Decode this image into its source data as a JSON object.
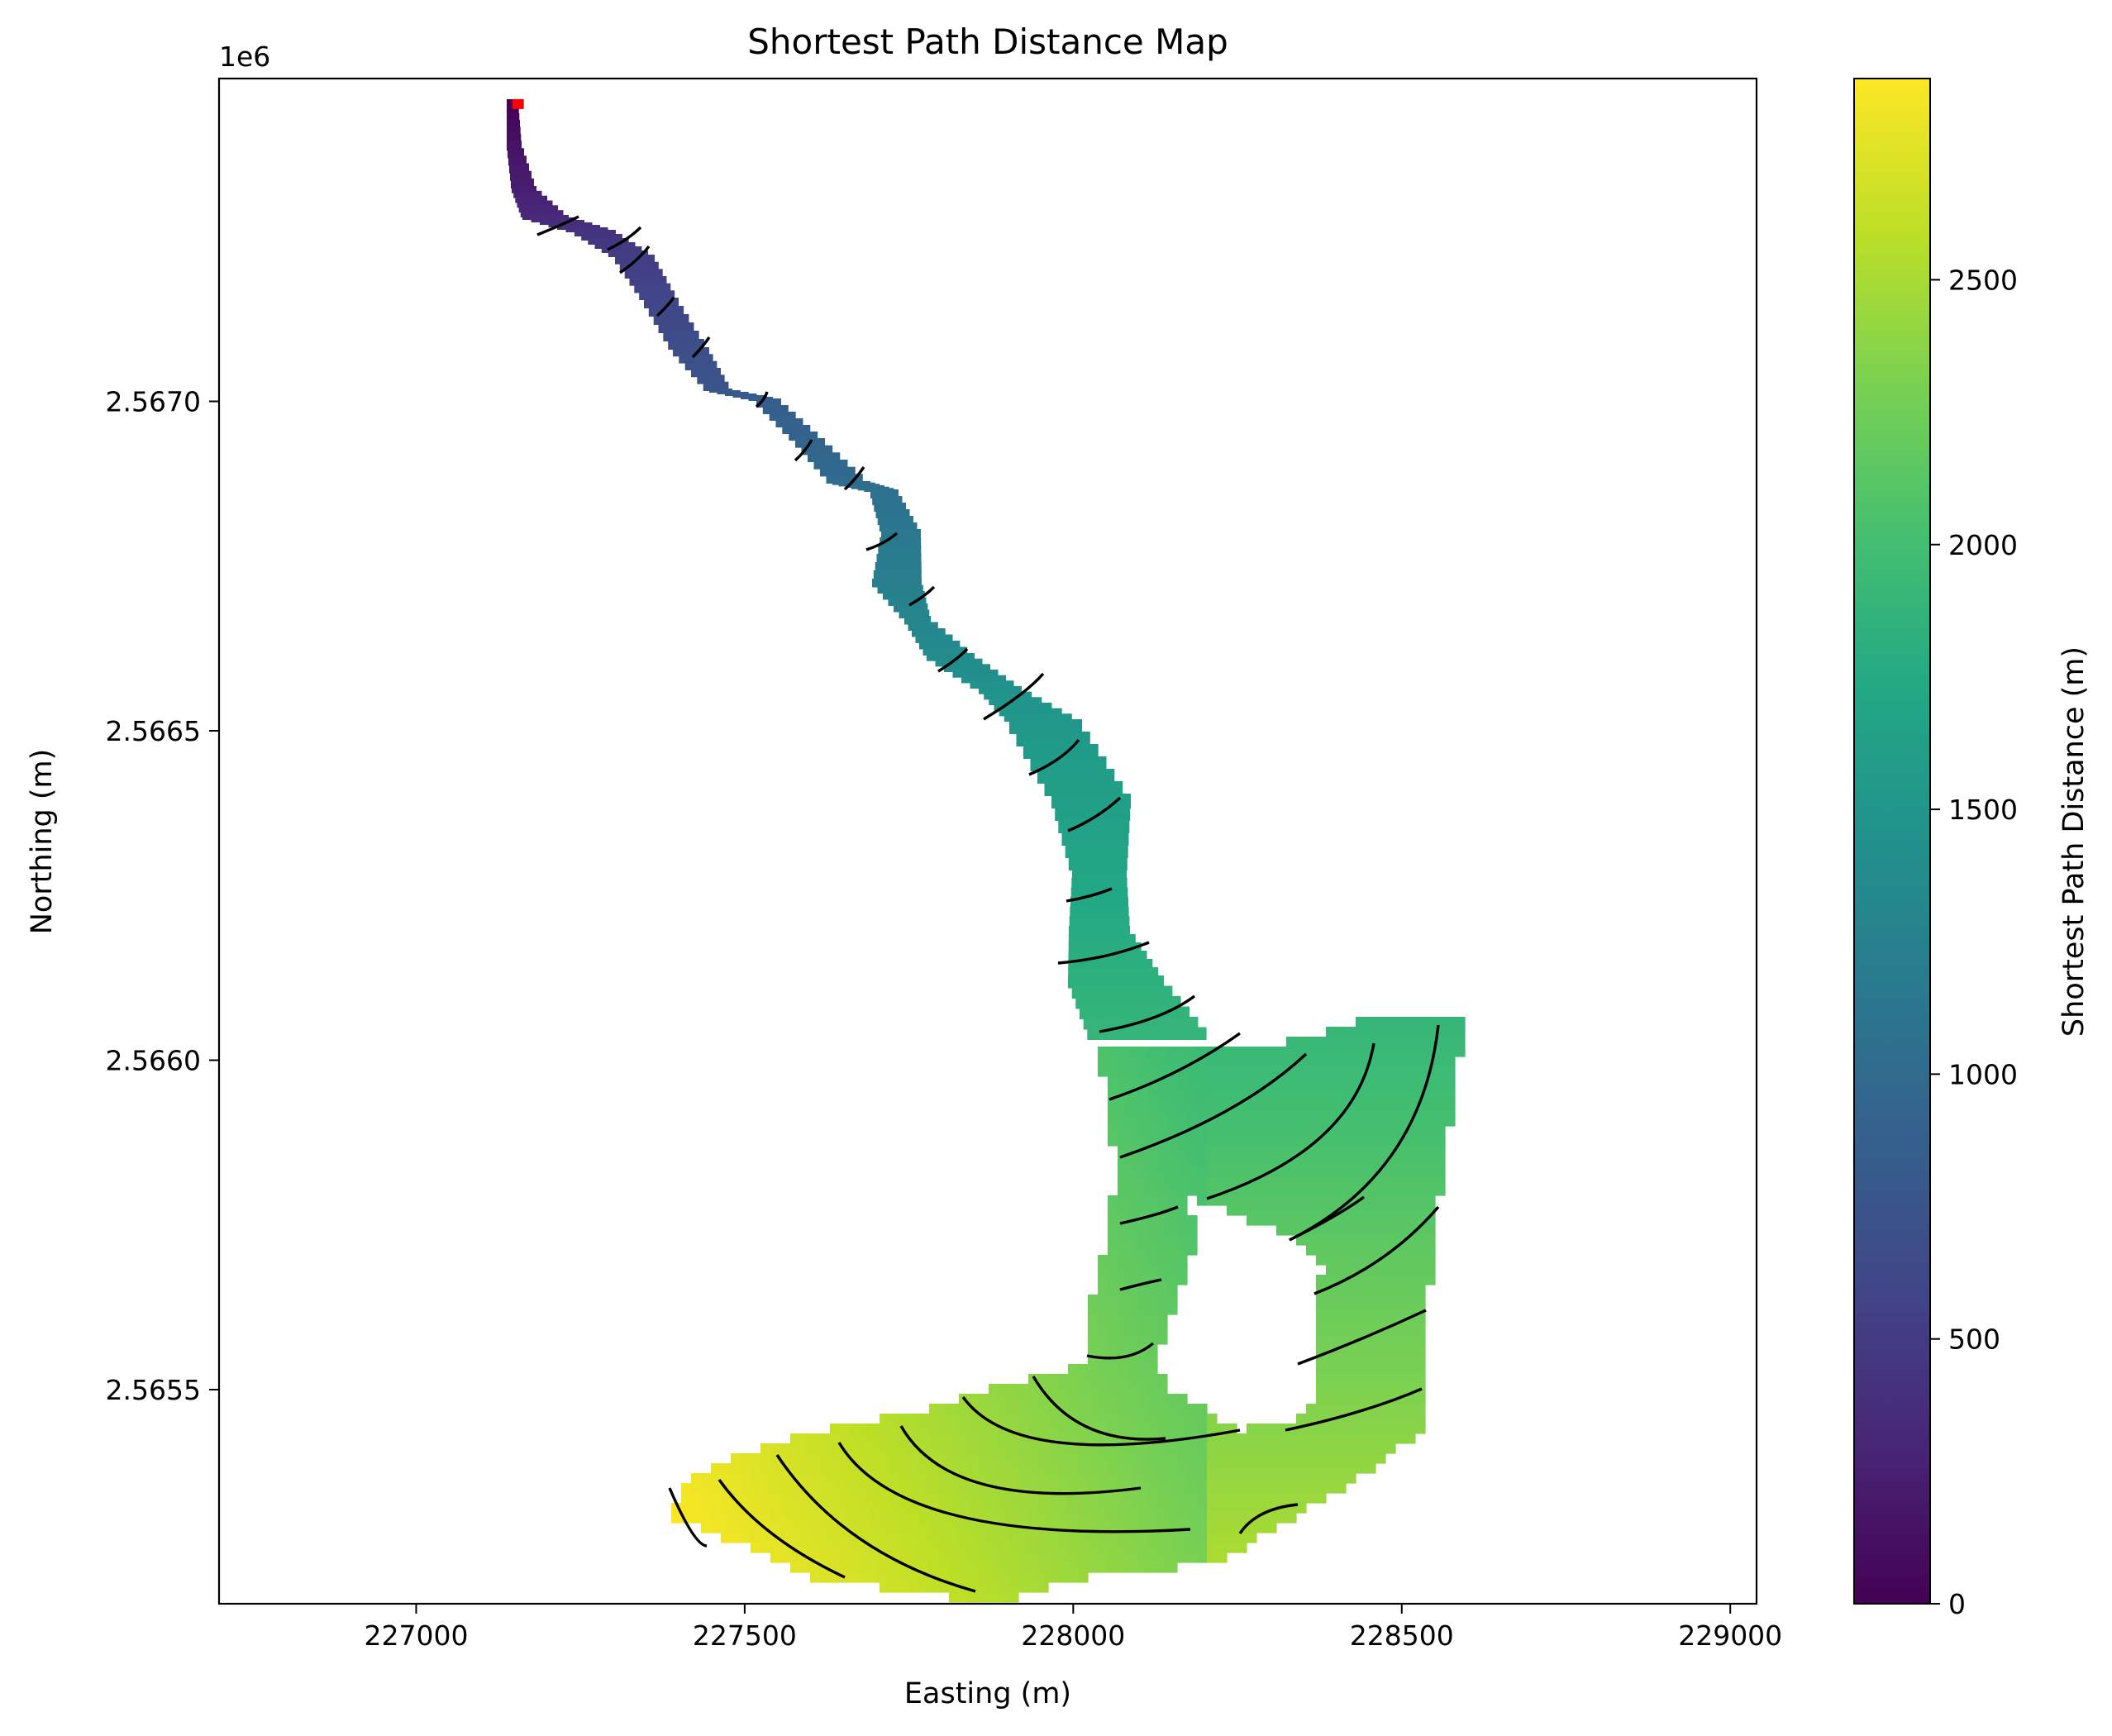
{
  "chart_data": {
    "type": "heatmap",
    "title": "Shortest Path Distance Map",
    "xlabel": "Easting (m)",
    "ylabel": "Northing (m)",
    "y_offset_label": "1e6",
    "xlim": [
      226700,
      229040
    ],
    "ylim": [
      2565175,
      2567490
    ],
    "x_ticks": [
      227000,
      227500,
      228000,
      228500,
      229000
    ],
    "x_tick_labels": [
      "227000",
      "227500",
      "228000",
      "228500",
      "229000"
    ],
    "y_ticks": [
      2565500,
      2566000,
      2566500,
      2567000
    ],
    "y_tick_labels": [
      "2.5655",
      "2.5660",
      "2.5665",
      "2.5670"
    ],
    "colorbar": {
      "label": "Shortest Path Distance (m)",
      "colormap": "viridis",
      "range": [
        0,
        2880
      ],
      "ticks": [
        0,
        500,
        1000,
        1500,
        2000,
        2500
      ],
      "tick_labels": [
        "0",
        "500",
        "1000",
        "1500",
        "2000",
        "2500"
      ]
    },
    "source_point": {
      "x": 227155,
      "y": 2567450,
      "color": "#ff0000"
    },
    "contour_interval_m": 100,
    "contour_color": "#000000",
    "distance_samples": [
      {
        "x": 227160,
        "y": 2567440,
        "d": 0
      },
      {
        "x": 227180,
        "y": 2567280,
        "d": 150
      },
      {
        "x": 227300,
        "y": 2567240,
        "d": 280
      },
      {
        "x": 227400,
        "y": 2567150,
        "d": 420
      },
      {
        "x": 227480,
        "y": 2567040,
        "d": 560
      },
      {
        "x": 227580,
        "y": 2566960,
        "d": 700
      },
      {
        "x": 227690,
        "y": 2566880,
        "d": 840
      },
      {
        "x": 227720,
        "y": 2566760,
        "d": 960
      },
      {
        "x": 227760,
        "y": 2566660,
        "d": 1060
      },
      {
        "x": 227860,
        "y": 2566580,
        "d": 1160
      },
      {
        "x": 227950,
        "y": 2566480,
        "d": 1280
      },
      {
        "x": 228020,
        "y": 2566360,
        "d": 1400
      },
      {
        "x": 228010,
        "y": 2566240,
        "d": 1500
      },
      {
        "x": 228060,
        "y": 2566120,
        "d": 1620
      },
      {
        "x": 228140,
        "y": 2566040,
        "d": 1720
      },
      {
        "x": 228100,
        "y": 2565930,
        "d": 1840
      },
      {
        "x": 228300,
        "y": 2565960,
        "d": 1900
      },
      {
        "x": 228480,
        "y": 2565940,
        "d": 2010
      },
      {
        "x": 228470,
        "y": 2565760,
        "d": 2120
      },
      {
        "x": 228420,
        "y": 2565580,
        "d": 2250
      },
      {
        "x": 228120,
        "y": 2565680,
        "d": 2040
      },
      {
        "x": 228080,
        "y": 2565530,
        "d": 2120
      },
      {
        "x": 228050,
        "y": 2565430,
        "d": 2230
      },
      {
        "x": 228420,
        "y": 2565430,
        "d": 2330
      },
      {
        "x": 228350,
        "y": 2565320,
        "d": 2400
      },
      {
        "x": 228040,
        "y": 2565300,
        "d": 2420
      },
      {
        "x": 227850,
        "y": 2565380,
        "d": 2460
      },
      {
        "x": 227750,
        "y": 2565240,
        "d": 2580
      },
      {
        "x": 227580,
        "y": 2565330,
        "d": 2700
      },
      {
        "x": 227420,
        "y": 2565310,
        "d": 2880
      }
    ]
  }
}
